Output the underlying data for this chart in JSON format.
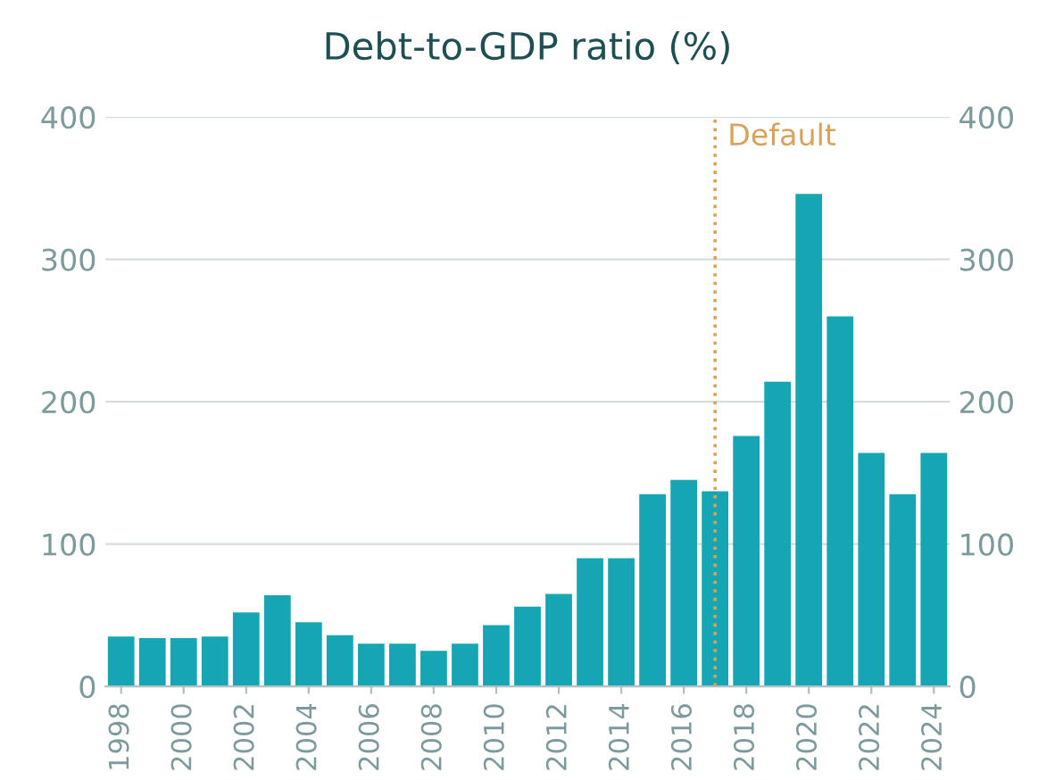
{
  "chart_data": {
    "type": "bar",
    "title": "Debt-to-GDP ratio (%)",
    "x": [
      1998,
      1999,
      2000,
      2001,
      2002,
      2003,
      2004,
      2005,
      2006,
      2007,
      2008,
      2009,
      2010,
      2011,
      2012,
      2013,
      2014,
      2015,
      2016,
      2017,
      2018,
      2019,
      2020,
      2021,
      2022,
      2023,
      2024
    ],
    "values": [
      35,
      34,
      34,
      35,
      52,
      64,
      45,
      36,
      30,
      30,
      25,
      30,
      43,
      56,
      65,
      90,
      90,
      135,
      145,
      137,
      176,
      214,
      346,
      260,
      164,
      135,
      164
    ],
    "color": "#16a6b3",
    "xlim": [
      1997.5,
      2024.5
    ],
    "xticks": [
      1998,
      2000,
      2002,
      2004,
      2006,
      2008,
      2010,
      2012,
      2014,
      2016,
      2018,
      2020,
      2022,
      2024
    ],
    "ylim": [
      0,
      400
    ],
    "yticks": [
      0,
      100,
      200,
      300,
      400
    ],
    "y2lim": [
      0,
      400
    ],
    "y2ticks": [
      0,
      100,
      200,
      300,
      400
    ],
    "grid": "y",
    "ref_lines": [
      {
        "axis": "x",
        "value": 2017,
        "label": "Default",
        "color": "#d9a25a",
        "line_style": "dotted"
      }
    ]
  }
}
